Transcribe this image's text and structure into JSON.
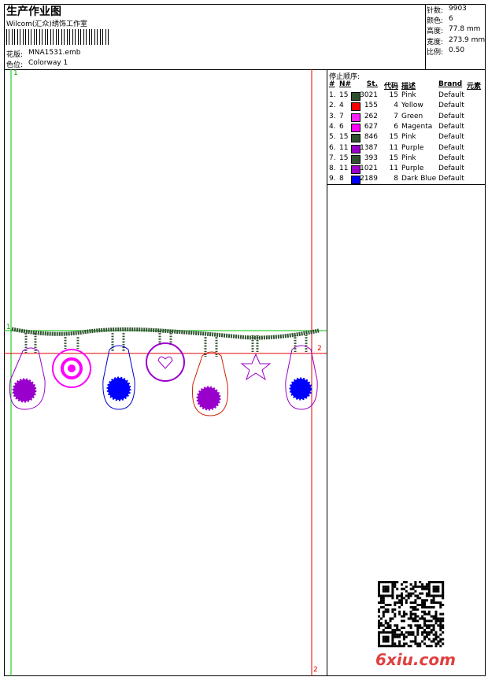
{
  "header": {
    "title": "生产作业图",
    "studio": "Wilcom(汇众)绣饰工作室",
    "design_label": "花版:",
    "design": "MNA1531.emb",
    "colorway_label": "色位:",
    "colorway": "Colorway 1"
  },
  "info": [
    {
      "label": "针数:",
      "value": "9903"
    },
    {
      "label": "颜色:",
      "value": "6"
    },
    {
      "label": "高度:",
      "value": "77.8 mm"
    },
    {
      "label": "宽度:",
      "value": "273.9 mm"
    },
    {
      "label": "比例:",
      "value": "0.50"
    }
  ],
  "stop_sequence": {
    "title": "停止顺序:",
    "columns": [
      "#",
      "N#",
      "St.",
      "代码",
      "描述",
      "Brand",
      "元素"
    ],
    "rows": [
      {
        "cells": [
          "1.",
          "15",
          "3021",
          "15",
          "Pink",
          "Default"
        ],
        "color": "#2f4f2f"
      },
      {
        "cells": [
          "2.",
          "4",
          "155",
          "4",
          "Yellow",
          "Default"
        ],
        "color": "#ff0000"
      },
      {
        "cells": [
          "3.",
          "7",
          "262",
          "7",
          "Green",
          "Default"
        ],
        "color": "#ff22ff"
      },
      {
        "cells": [
          "4.",
          "6",
          "627",
          "6",
          "Magenta",
          "Default"
        ],
        "color": "#ff00ff"
      },
      {
        "cells": [
          "5.",
          "15",
          "846",
          "15",
          "Pink",
          "Default"
        ],
        "color": "#2f4f2f"
      },
      {
        "cells": [
          "6.",
          "11",
          "1387",
          "11",
          "Purple",
          "Default"
        ],
        "color": "#9a00cc"
      },
      {
        "cells": [
          "7.",
          "15",
          "393",
          "15",
          "Pink",
          "Default"
        ],
        "color": "#2f4f2f"
      },
      {
        "cells": [
          "8.",
          "11",
          "1021",
          "11",
          "Purple",
          "Default"
        ],
        "color": "#9a00cc"
      },
      {
        "cells": [
          "9.",
          "8",
          "2189",
          "8",
          "Dark Blue",
          "Default"
        ],
        "color": "#0000ff"
      }
    ]
  },
  "canvas": {
    "marks": [
      "1",
      "1",
      "2",
      "2"
    ]
  },
  "watermark": "6xiu.com"
}
